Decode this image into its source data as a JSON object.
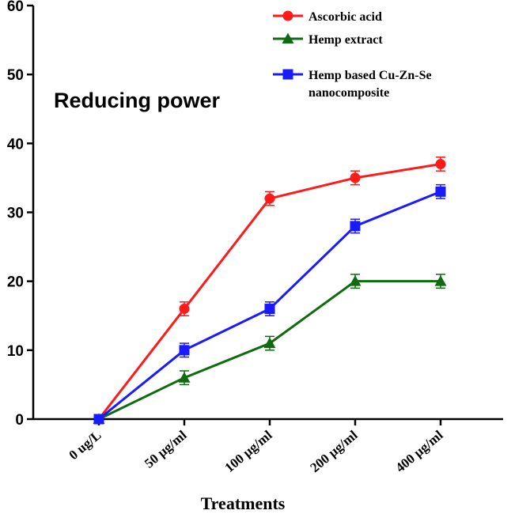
{
  "chart_data": {
    "type": "line",
    "title": "Reducing power",
    "xlabel": "Treatments",
    "ylabel": "",
    "categories": [
      "0 ug/L",
      "50 µg/ml",
      "100 µg/ml",
      "200 µg/ml",
      "400 µg/ml"
    ],
    "ylim": [
      0,
      60
    ],
    "yticks": [
      0,
      10,
      20,
      30,
      40,
      50,
      60
    ],
    "grid": false,
    "legend_position": "top-right",
    "series": [
      {
        "name": "Ascorbic acid",
        "color": "#ff1a1a",
        "marker": "circle",
        "values": [
          0,
          16,
          32,
          35,
          37
        ],
        "errors": [
          0,
          1,
          1,
          1,
          1
        ]
      },
      {
        "name": "Hemp extract",
        "color": "#0f6b0f",
        "marker": "triangle",
        "values": [
          0,
          6,
          11,
          20,
          20
        ],
        "errors": [
          0,
          1,
          1,
          1,
          1
        ]
      },
      {
        "name": "Hemp based Cu-Zn-Se nanocomposite",
        "color": "#1a1aff",
        "marker": "square",
        "values": [
          0,
          10,
          16,
          28,
          33
        ],
        "errors": [
          0,
          1,
          1,
          1,
          1
        ]
      }
    ],
    "legend_lines": [
      [
        "Ascorbic acid"
      ],
      [
        "Hemp extract"
      ],
      [
        "Hemp based Cu-Zn-Se",
        "nanocomposite"
      ]
    ]
  }
}
